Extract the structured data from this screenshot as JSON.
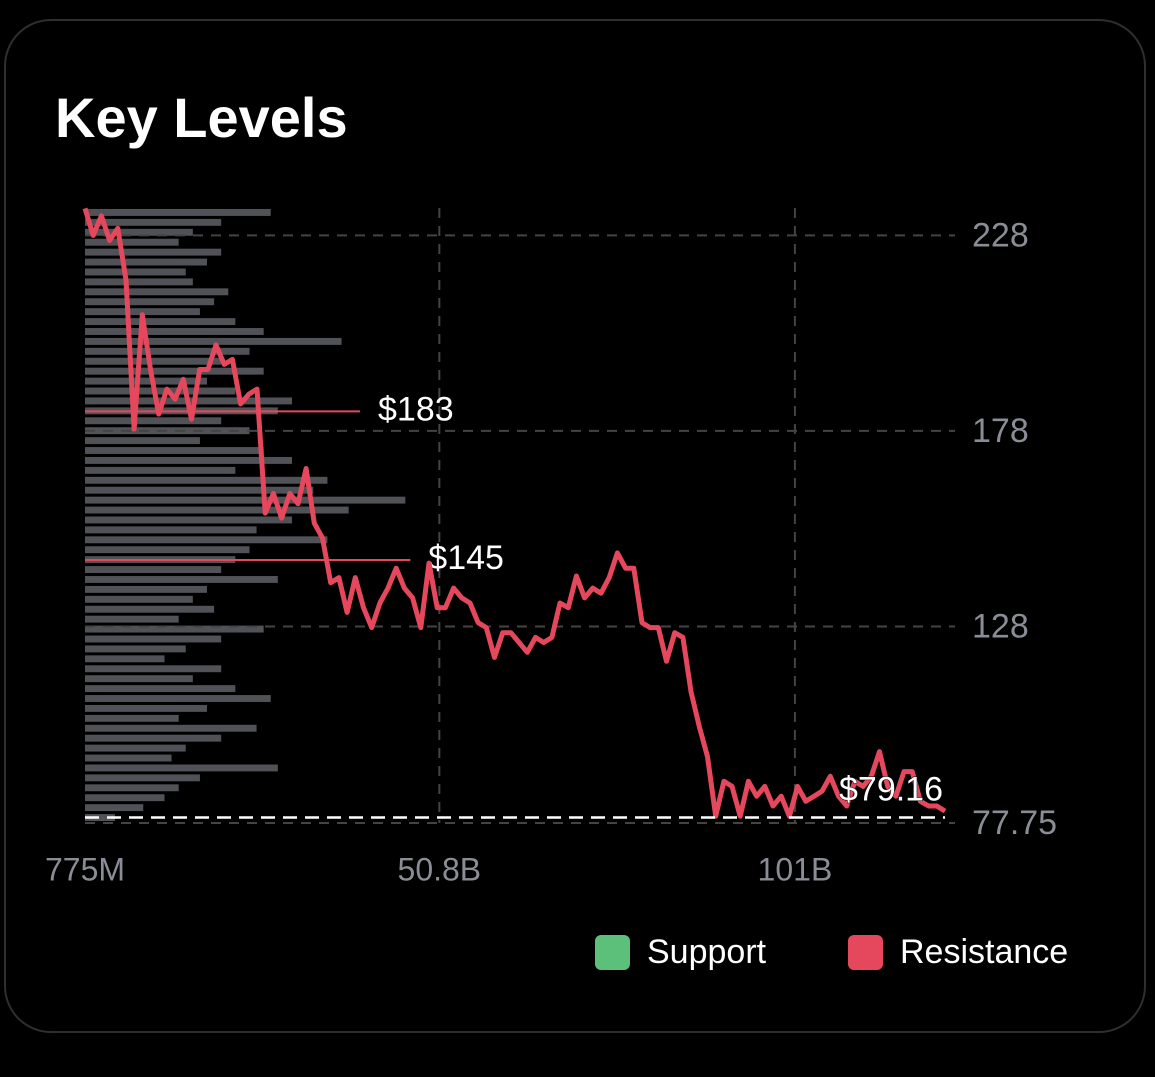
{
  "chart_data": {
    "type": "volume-profile",
    "title": "Key Levels",
    "xlim": [
      775000000.0,
      123600000000.0
    ],
    "xticks": [
      {
        "value": 775000000.0,
        "label": "775M"
      },
      {
        "value": 50800000000.0,
        "label": "50.8B"
      },
      {
        "value": 101000000000.0,
        "label": "101B"
      }
    ],
    "ylim": [
      77.75,
      235
    ],
    "yticks": [
      228,
      178,
      128,
      77.75
    ],
    "grid": true,
    "line_color": "#e5485c",
    "profile_color": "#6b6e76",
    "price": [
      234.9,
      228,
      233,
      226.7,
      229.8,
      216.6,
      178.5,
      207.7,
      193.7,
      182.3,
      188.7,
      186.1,
      191.2,
      181,
      193.7,
      193.7,
      200,
      195,
      196.3,
      184.9,
      187.4,
      188.7,
      157,
      162,
      155.7,
      162,
      159.4,
      168.4,
      154.4,
      150.6,
      139.2,
      140.5,
      131.6,
      140.5,
      132.8,
      127.7,
      134,
      137.8,
      142.9,
      137.8,
      135.3,
      127.7,
      144.2,
      132.8,
      132.8,
      137.8,
      135.3,
      134,
      129,
      127.7,
      120.1,
      126.4,
      126.4,
      123.9,
      121.4,
      125.2,
      123.9,
      125.2,
      134,
      132.8,
      140.9,
      135.3,
      137.8,
      136.5,
      140.5,
      146.8,
      142.9,
      142.9,
      129,
      127.7,
      127.7,
      119.1,
      126.4,
      125.2,
      111.2,
      102.4,
      94.7,
      79.5,
      88.4,
      87.1,
      79.5,
      88.4,
      84.6,
      87.1,
      82.1,
      84.6,
      79.5,
      87.1,
      83.3,
      84.6,
      85.9,
      89.7,
      84.6,
      82.1,
      88.4,
      87.1,
      89.7,
      96,
      87.1,
      84.6,
      90.9,
      90.9,
      83.3,
      82.1,
      82.1,
      80.8
    ],
    "volume_profile": [
      27000000000.0,
      20000000000.0,
      16000000000.0,
      14000000000.0,
      20000000000.0,
      18000000000.0,
      15000000000.0,
      16000000000.0,
      21000000000.0,
      19000000000.0,
      17000000000.0,
      22000000000.0,
      26000000000.0,
      37000000000.0,
      24000000000.0,
      20000000000.0,
      26000000000.0,
      18000000000.0,
      22000000000.0,
      30000000000.0,
      28000000000.0,
      20000000000.0,
      24000000000.0,
      17000000000.0,
      26000000000.0,
      30000000000.0,
      22000000000.0,
      35000000000.0,
      33000000000.0,
      46000000000.0,
      38000000000.0,
      30000000000.0,
      25000000000.0,
      35000000000.0,
      24000000000.0,
      22000000000.0,
      20000000000.0,
      28000000000.0,
      18000000000.0,
      16000000000.0,
      19000000000.0,
      14000000000.0,
      26000000000.0,
      20000000000.0,
      15000000000.0,
      12000000000.0,
      20000000000.0,
      16000000000.0,
      22000000000.0,
      27000000000.0,
      18000000000.0,
      14000000000.0,
      25000000000.0,
      20000000000.0,
      15000000000.0,
      13000000000.0,
      28000000000.0,
      17000000000.0,
      14000000000.0,
      12000000000.0,
      9000000000.0,
      5000000000.0
    ],
    "levels": {
      "values": [
        183,
        145
      ],
      "value_labels": [
        "$183",
        "$145"
      ],
      "volumes": [
        39600000000.0,
        46700000000.0
      ]
    },
    "current_price": 79.16,
    "current_price_label": "$79.16",
    "legend": [
      {
        "name": "Support",
        "color": "#5cbf7a"
      },
      {
        "name": "Resistance",
        "color": "#e5485c"
      }
    ]
  }
}
